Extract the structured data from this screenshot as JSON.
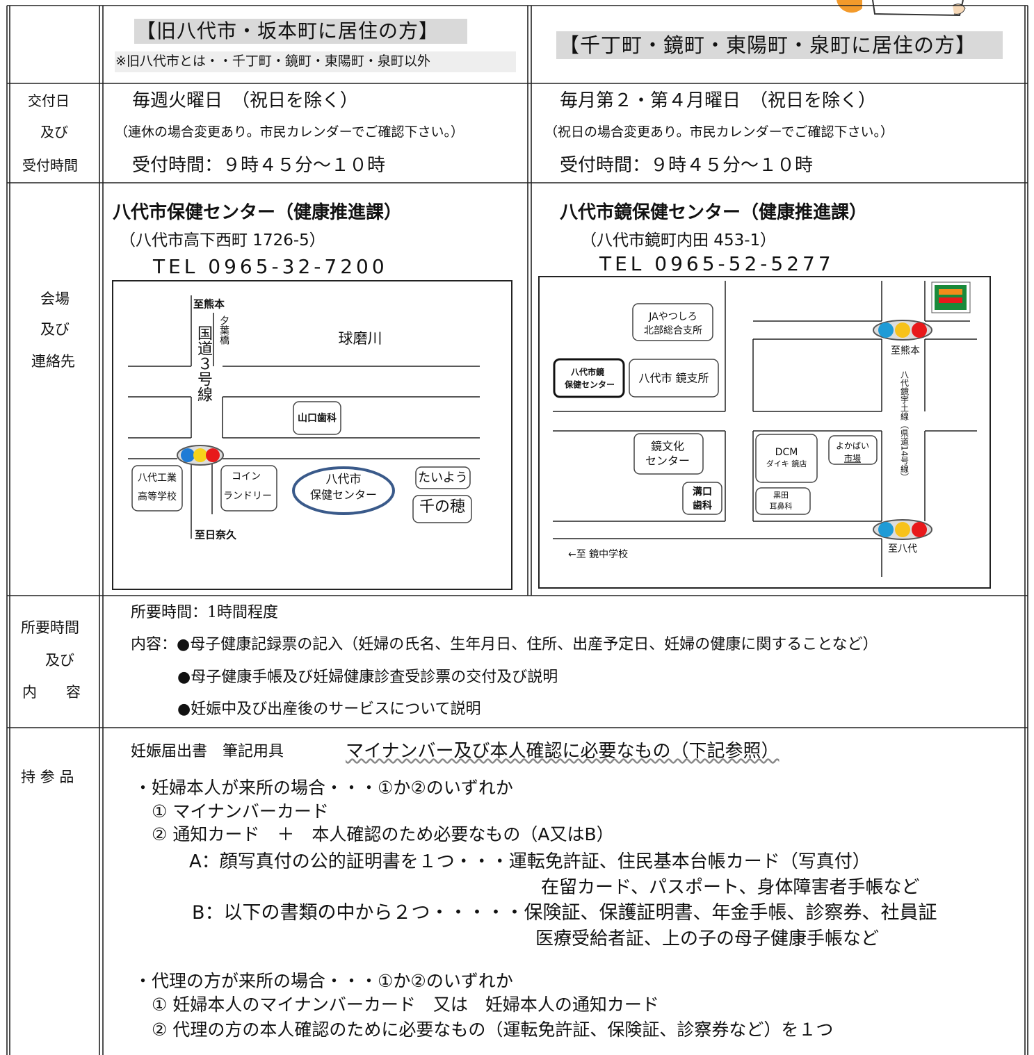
{
  "header": {
    "col1_title": "【旧八代市・坂本町に居住の方】",
    "col1_note": "※旧八代市とは・・千丁町・鏡町・東陽町・泉町以外",
    "col2_title": "【千丁町・鏡町・東陽町・泉町に居住の方】"
  },
  "schedule": {
    "label": [
      "交付日",
      "及び",
      "受付時間"
    ],
    "col1": [
      "毎週火曜日　（祝日を除く）",
      "（連休の場合変更あり。市民カレンダーでご確認下さい。）",
      "受付時間：９時４５分～１０時"
    ],
    "col2": [
      "毎月第２・第４月曜日　（祝日を除く）",
      "（祝日の場合変更あり。市民カレンダーでご確認下さい。）",
      "受付時間：９時４５分～１０時"
    ]
  },
  "venue": {
    "label": [
      "会場",
      "及び",
      "連絡先"
    ],
    "col1": {
      "name": "八代市保健センター（健康推進課）",
      "address": "（八代市高下西町 1726-5）",
      "tel": "TEL 0965-32-7200",
      "map": {
        "north": "至熊本",
        "bridge": "夕葉橋",
        "route": "国道３号線",
        "river": "球磨川",
        "dental": "山口歯科",
        "school": [
          "八代工業",
          "高等学校"
        ],
        "laundry": [
          "コイン",
          "ランドリー"
        ],
        "center": [
          "八代市",
          "保健センター"
        ],
        "shop1": "たいよう",
        "shop2": "千の穂",
        "south": "至日奈久"
      }
    },
    "col2": {
      "name": "八代市鏡保健センター（健康推進課）",
      "address": "（八代市鏡町内田 453-1）",
      "tel": "TEL 0965-52-5277",
      "map": {
        "ja": [
          "JAやつしろ",
          "北部総合支所"
        ],
        "center": [
          "八代市鏡",
          "保健センター"
        ],
        "branch": "八代市 鏡支所",
        "north": "至熊本",
        "route": "八代鏡宇土線（県道14号線）",
        "culture": [
          "鏡文化",
          "センター"
        ],
        "dcm": [
          "DCM",
          "ダイキ 鏡店"
        ],
        "market": [
          "よかばい",
          "市場"
        ],
        "dental": [
          "溝口",
          "歯科"
        ],
        "ent": [
          "黒田",
          "耳鼻科"
        ],
        "south": "至八代",
        "school": "←至 鏡中学校"
      }
    }
  },
  "duration": {
    "label": [
      "所要時間",
      "及び",
      "内　　容"
    ],
    "lines": [
      "所要時間：1時間程度",
      "内容：●母子健康記録票の記入（妊婦の氏名、生年月日、住所、出産予定日、妊婦の健康に関することなど）",
      "●母子健康手帳及び妊婦健康診査受診票の交付及び説明",
      "●妊娠中及び出産後のサービスについて説明"
    ]
  },
  "items": {
    "label": "持 参 品",
    "intro": "妊娠届出書　筆記用具",
    "intro_underlined": "マイナンバー及び本人確認に必要なもの（下記参照）",
    "lines": [
      "・妊婦本人が来所の場合・・・①か②のいずれか",
      "① マイナンバーカード",
      "② 通知カード　＋　本人確認のため必要なもの（A又はB）",
      "A：顔写真付の公的証明書を１つ・・・運転免許証、住民基本台帳カード（写真付）",
      "在留カード、パスポート、身体障害者手帳など",
      "B：以下の書類の中から２つ・・・・・保険証、保護証明書、年金手帳、診察券、社員証",
      "医療受給者証、上の子の母子健康手帳など",
      "・代理の方が来所の場合・・・①か②のいずれか",
      "① 妊婦本人のマイナンバーカード　又は　妊婦本人の通知カード",
      "② 代理の方の本人確認のために必要なもの（運転免許証、保険証、診察券など）を１つ"
    ]
  }
}
